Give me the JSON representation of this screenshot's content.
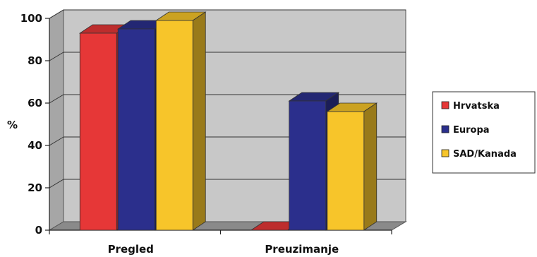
{
  "chart_data": {
    "type": "bar",
    "ylabel": "%",
    "ylim": [
      0,
      100
    ],
    "yticks": [
      0,
      20,
      40,
      60,
      80,
      100
    ],
    "grid": true,
    "legend_position": "right",
    "categories": [
      "Pregled",
      "Preuzimanje"
    ],
    "series": [
      {
        "name": "Hrvatska",
        "color": "#e63737",
        "values": [
          93,
          0
        ]
      },
      {
        "name": "Europa",
        "color": "#2b2f8c",
        "values": [
          95,
          61
        ]
      },
      {
        "name": "SAD/Kanada",
        "color": "#f7c52a",
        "values": [
          99,
          56
        ]
      }
    ]
  }
}
